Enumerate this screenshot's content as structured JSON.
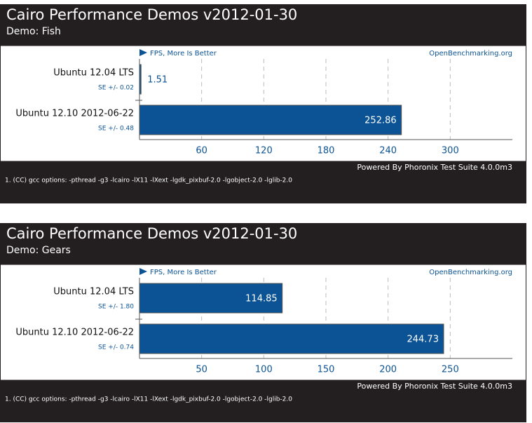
{
  "chart_data": [
    {
      "type": "bar",
      "orientation": "horizontal",
      "title": "Cairo Performance Demos v2012-01-30",
      "subtitle": "Demo: Fish",
      "legend": "FPS, More Is Better",
      "source": "OpenBenchmarking.org",
      "categories": [
        "Ubuntu 12.04 LTS",
        "Ubuntu 12.10 2012-06-22"
      ],
      "values": [
        1.51,
        252.86
      ],
      "error_labels": [
        "SE +/- 0.02",
        "SE +/- 0.48"
      ],
      "color": "#0b5394",
      "xlim": [
        0,
        360
      ],
      "xticks": [
        60,
        120,
        180,
        240,
        300
      ],
      "grid": true,
      "footer": "Powered By Phoronix Test Suite 4.0.0m3",
      "note": "1. (CC) gcc options: -pthread -g3 -lcairo -lX11 -lXext -lgdk_pixbuf-2.0 -lgobject-2.0 -lglib-2.0"
    },
    {
      "type": "bar",
      "orientation": "horizontal",
      "title": "Cairo Performance Demos v2012-01-30",
      "subtitle": "Demo: Gears",
      "legend": "FPS, More Is Better",
      "source": "OpenBenchmarking.org",
      "categories": [
        "Ubuntu 12.04 LTS",
        "Ubuntu 12.10 2012-06-22"
      ],
      "values": [
        114.85,
        244.73
      ],
      "error_labels": [
        "SE +/- 1.80",
        "SE +/- 0.74"
      ],
      "color": "#0b5394",
      "xlim": [
        0,
        300
      ],
      "xticks": [
        50,
        100,
        150,
        200,
        250
      ],
      "grid": true,
      "footer": "Powered By Phoronix Test Suite 4.0.0m3",
      "note": "1. (CC) gcc options: -pthread -g3 -lcairo -lX11 -lXext -lgdk_pixbuf-2.0 -lgobject-2.0 -lglib-2.0"
    }
  ]
}
